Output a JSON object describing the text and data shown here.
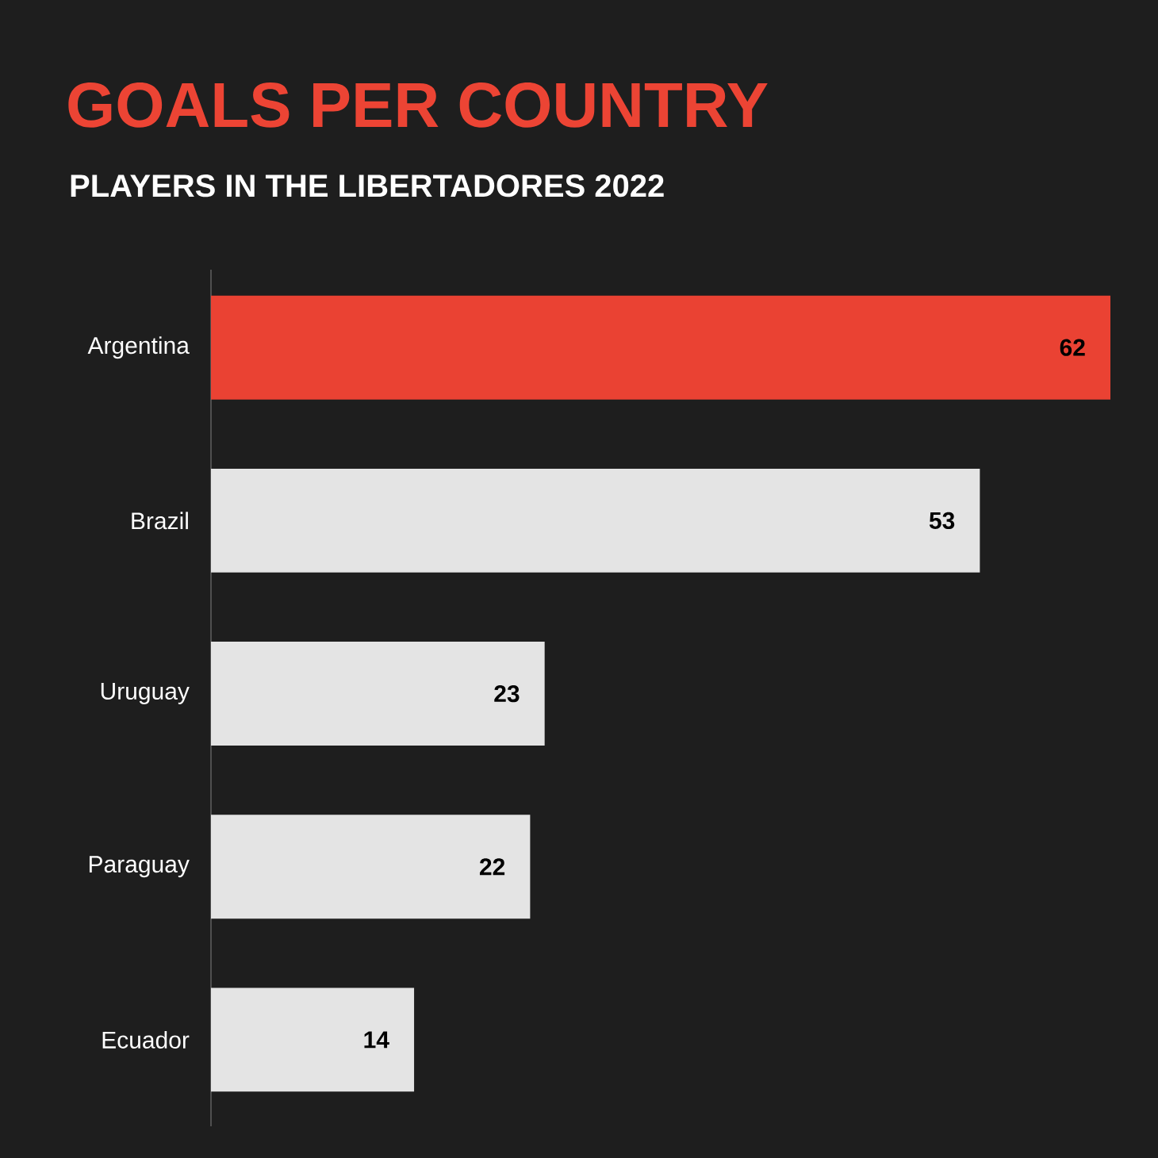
{
  "chart_data": {
    "type": "bar",
    "orientation": "horizontal",
    "title": "GOALS PER COUNTRY",
    "subtitle": "PLAYERS IN THE LIBERTADORES 2022",
    "categories": [
      "Argentina",
      "Brazil",
      "Uruguay",
      "Paraguay",
      "Ecuador"
    ],
    "values": [
      62,
      53,
      23,
      22,
      14
    ],
    "colors": [
      "#ea4233",
      "#e4e4e4",
      "#e4e4e4",
      "#e4e4e4",
      "#e4e4e4"
    ],
    "data_labels": true
  }
}
